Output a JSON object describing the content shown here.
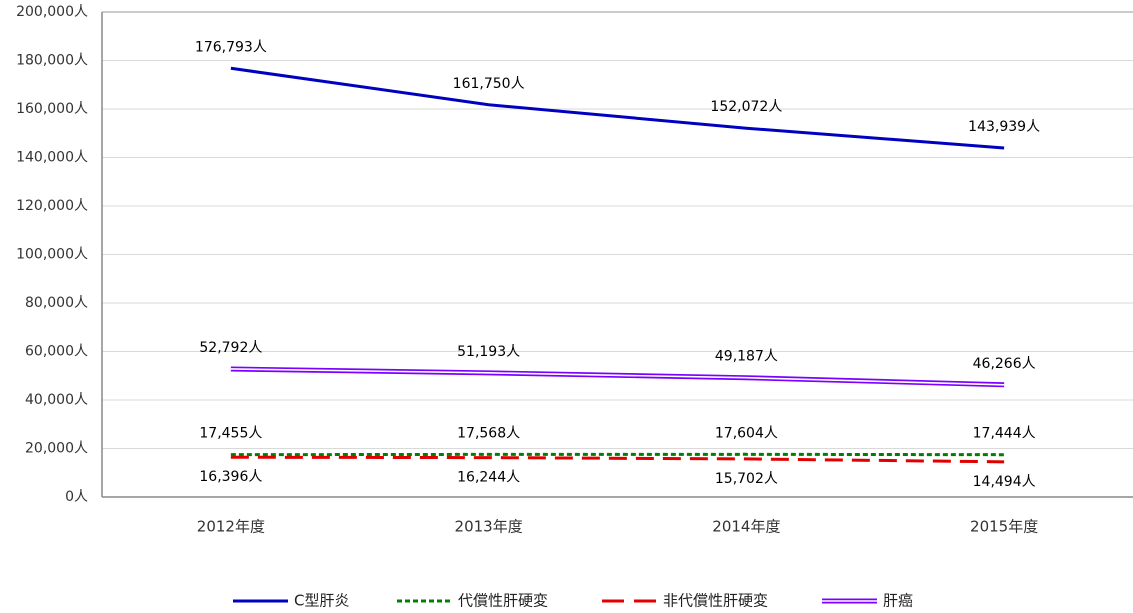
{
  "chart_data": {
    "type": "line",
    "categories": [
      "2012年度",
      "2013年度",
      "2014年度",
      "2015年度"
    ],
    "series": [
      {
        "name": "C型肝炎",
        "color": "#0000c0",
        "style": "solid",
        "values": [
          176793,
          161750,
          152072,
          143939
        ],
        "value_labels": [
          "176,793人",
          "161,750人",
          "152,072人",
          "143,939人"
        ]
      },
      {
        "name": "代償性肝硬変",
        "color": "#008000",
        "style": "dotted",
        "values": [
          17455,
          17568,
          17604,
          17444
        ],
        "value_labels": [
          "17,455人",
          "17,568人",
          "17,604人",
          "17,444人"
        ]
      },
      {
        "name": "非代償性肝硬変",
        "color": "#e00000",
        "style": "dashed",
        "values": [
          16396,
          16244,
          15702,
          14494
        ],
        "value_labels": [
          "16,396人",
          "16,244人",
          "15,702人",
          "14,494人"
        ]
      },
      {
        "name": "肝癌",
        "color": "#7b00ff",
        "style": "double",
        "values": [
          52792,
          51193,
          49187,
          46266
        ],
        "value_labels": [
          "52,792人",
          "51,193人",
          "49,187人",
          "46,266人"
        ]
      }
    ],
    "ylim": [
      0,
      200000
    ],
    "yticks": [
      {
        "value": 0,
        "label": "0人"
      },
      {
        "value": 20000,
        "label": "20,000人"
      },
      {
        "value": 40000,
        "label": "40,000人"
      },
      {
        "value": 60000,
        "label": "60,000人"
      },
      {
        "value": 80000,
        "label": "80,000人"
      },
      {
        "value": 100000,
        "label": "100,000人"
      },
      {
        "value": 120000,
        "label": "120,000人"
      },
      {
        "value": 140000,
        "label": "140,000人"
      },
      {
        "value": 160000,
        "label": "160,000人"
      },
      {
        "value": 180000,
        "label": "180,000人"
      },
      {
        "value": 200000,
        "label": "200,000人"
      }
    ],
    "grid": true,
    "legend": "bottom"
  }
}
